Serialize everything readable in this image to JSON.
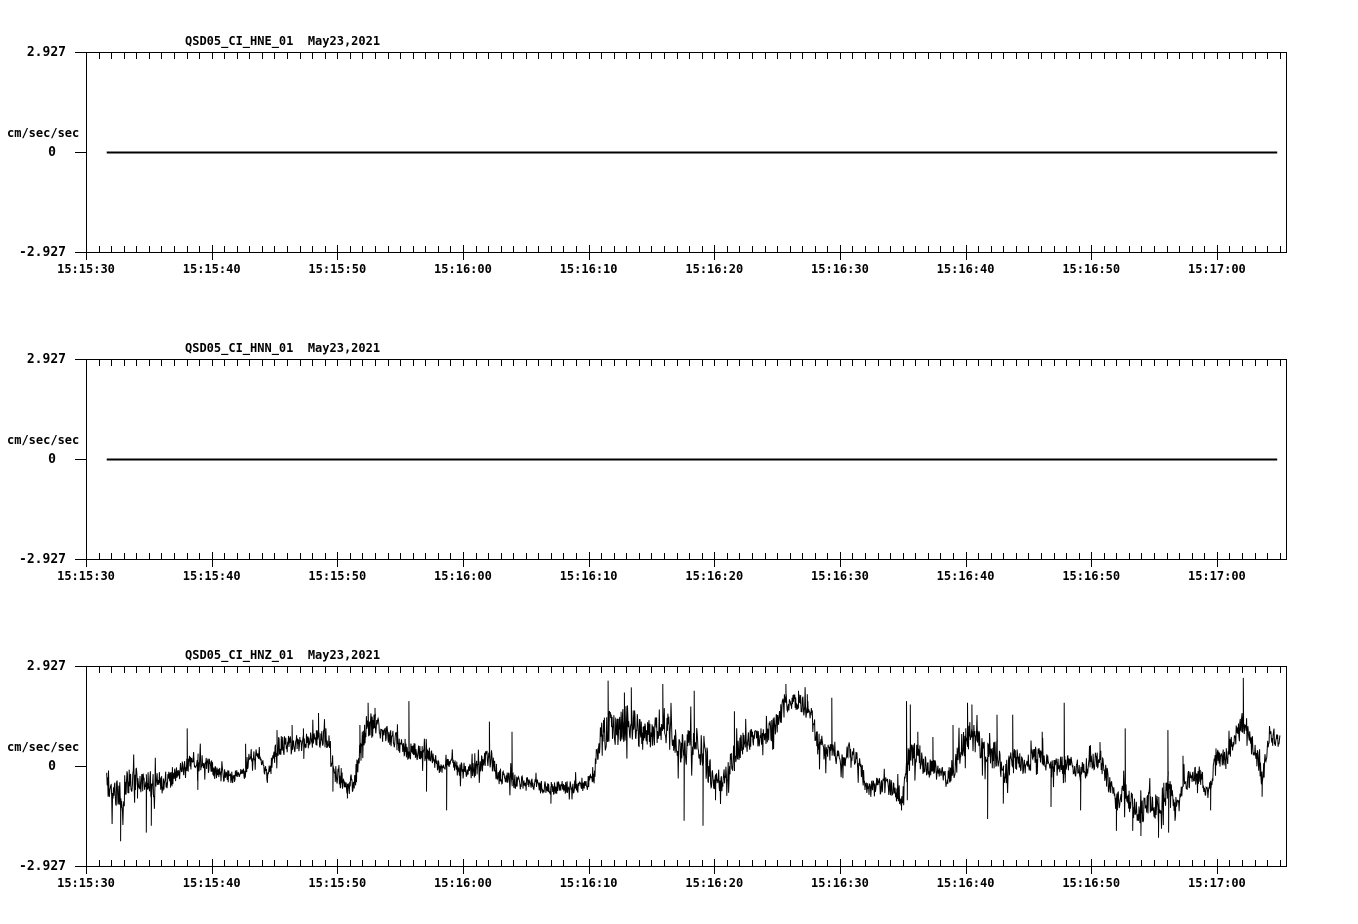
{
  "page": {
    "background": "#ffffff",
    "ink": "#000000"
  },
  "panels": [
    {
      "title": "QSD05_CI_HNE_01  May23,2021",
      "ylabel": "cm/sec/sec",
      "y_ticks": [
        "2.927",
        "0",
        "-2.927"
      ]
    },
    {
      "title": "QSD05_CI_HNN_01  May23,2021",
      "ylabel": "cm/sec/sec",
      "y_ticks": [
        "2.927",
        "0",
        "-2.927"
      ]
    },
    {
      "title": "QSD05_CI_HNZ_01  May23,2021",
      "ylabel": "cm/sec/sec",
      "y_ticks": [
        "2.927",
        "0",
        "-2.927"
      ]
    }
  ],
  "x_axis": {
    "labels": [
      "15:15:30",
      "15:15:40",
      "15:15:50",
      "15:16:00",
      "15:16:10",
      "15:16:20",
      "15:16:30",
      "15:16:40",
      "15:16:50",
      "15:17:00"
    ],
    "major_interval_s": 10,
    "minor_interval_s": 1,
    "span_s": 95.5
  },
  "chart_data": {
    "type": "line",
    "ylabel": "cm/sec/sec",
    "ylim": [
      -2.927,
      2.927
    ],
    "x_start_label": "15:15:30",
    "x_tick_labels": [
      "15:15:30",
      "15:15:40",
      "15:15:50",
      "15:16:00",
      "15:16:10",
      "15:16:20",
      "15:16:30",
      "15:16:40",
      "15:16:50",
      "15:17:00"
    ],
    "x_span_s": 95.5,
    "grid": false,
    "legend": false,
    "series": [
      {
        "name": "QSD05_CI_HNE_01",
        "x_s": [
          1.65,
          94.8
        ],
        "values": [
          0,
          0
        ]
      },
      {
        "name": "QSD05_CI_HNN_01",
        "x_s": [
          1.65,
          94.8
        ],
        "values": [
          0,
          0
        ]
      },
      {
        "name": "QSD05_CI_HNZ_01",
        "x_s": [
          1.65,
          2.2,
          2.8,
          3.4,
          4.2,
          4.8,
          5.4,
          6.1,
          6.7,
          7.3,
          8.0,
          8.5,
          9.0,
          9.6,
          10.3,
          11.2,
          12.0,
          12.6,
          13.0,
          13.7,
          14.4,
          15.3,
          16.2,
          17.0,
          18.3,
          19.2,
          19.7,
          20.5,
          21.3,
          21.8,
          22.4,
          23.0,
          23.6,
          24.4,
          25.0,
          25.7,
          26.5,
          27.3,
          28.0,
          28.7,
          29.5,
          30.3,
          31.0,
          32.1,
          32.8,
          33.9,
          34.8,
          36.0,
          37.2,
          38.4,
          39.6,
          40.4,
          40.9,
          41.5,
          42.2,
          42.9,
          43.5,
          44.3,
          45.2,
          45.9,
          46.7,
          47.5,
          48.3,
          49.1,
          49.9,
          50.7,
          51.5,
          52.3,
          53.2,
          54.2,
          55.0,
          55.7,
          56.4,
          57.0,
          57.6,
          58.2,
          58.9,
          59.4,
          59.9,
          60.3,
          60.7,
          61.3,
          61.8,
          62.3,
          62.9,
          63.4,
          64.1,
          64.5,
          65.0,
          65.3,
          65.8,
          66.3,
          66.8,
          67.4,
          68.0,
          68.4,
          69.0,
          69.6,
          70.2,
          70.8,
          71.3,
          71.9,
          72.5,
          73.0,
          73.8,
          74.5,
          75.3,
          75.9,
          76.7,
          77.5,
          78.4,
          79.2,
          80.0,
          80.7,
          81.3,
          81.9,
          82.6,
          83.3,
          83.9,
          84.6,
          85.3,
          86.1,
          86.7,
          87.4,
          88.0,
          88.6,
          89.3,
          89.9,
          90.7,
          91.3,
          91.8,
          92.1,
          92.6,
          93.1,
          93.6,
          94.2,
          94.8,
          95.0
        ],
        "values": [
          -0.5,
          -0.75,
          -0.95,
          -0.4,
          -0.35,
          -0.55,
          -0.5,
          -0.5,
          -0.35,
          -0.15,
          -0.1,
          0.25,
          0.1,
          0.1,
          -0.2,
          -0.3,
          -0.3,
          -0.25,
          0.3,
          0.4,
          -0.3,
          0.6,
          0.6,
          0.7,
          0.85,
          0.8,
          0.0,
          -0.5,
          -0.55,
          0.3,
          1.3,
          1.2,
          0.9,
          0.85,
          0.6,
          0.45,
          0.35,
          0.3,
          0.0,
          0.1,
          -0.1,
          -0.15,
          -0.1,
          0.3,
          -0.3,
          -0.4,
          -0.5,
          -0.6,
          -0.65,
          -0.6,
          -0.55,
          -0.3,
          0.7,
          1.1,
          0.95,
          1.25,
          1.2,
          0.9,
          1.1,
          1.25,
          0.8,
          0.4,
          0.8,
          0.4,
          -0.4,
          -0.4,
          0.2,
          0.7,
          0.85,
          0.9,
          1.25,
          1.85,
          1.9,
          1.8,
          1.55,
          0.7,
          0.35,
          0.5,
          0.25,
          0.1,
          0.55,
          0.2,
          -0.3,
          -0.7,
          -0.6,
          -0.55,
          -0.65,
          -0.75,
          -1.0,
          0.0,
          0.3,
          0.3,
          -0.05,
          -0.1,
          -0.2,
          -0.45,
          -0.1,
          0.5,
          0.9,
          0.8,
          0.5,
          0.2,
          0.4,
          -0.3,
          0.2,
          0.0,
          0.2,
          0.4,
          -0.1,
          0.0,
          0.1,
          -0.2,
          0.1,
          0.2,
          -0.4,
          -1.0,
          -0.8,
          -1.2,
          -1.4,
          -1.0,
          -1.3,
          -0.6,
          -1.3,
          -0.5,
          -0.3,
          -0.25,
          -0.9,
          0.3,
          0.2,
          0.7,
          1.1,
          1.3,
          0.7,
          0.4,
          -0.4,
          0.9,
          0.8,
          0.75
        ],
        "noise_amp": [
          0.45,
          0.55,
          0.5,
          0.4,
          0.35,
          0.45,
          0.4,
          0.35,
          0.3,
          0.28,
          0.3,
          0.3,
          0.3,
          0.25,
          0.22,
          0.2,
          0.2,
          0.22,
          0.25,
          0.25,
          0.25,
          0.3,
          0.28,
          0.28,
          0.28,
          0.3,
          0.4,
          0.3,
          0.3,
          0.4,
          0.45,
          0.4,
          0.3,
          0.28,
          0.28,
          0.3,
          0.25,
          0.25,
          0.25,
          0.28,
          0.25,
          0.25,
          0.25,
          0.3,
          0.25,
          0.25,
          0.22,
          0.2,
          0.2,
          0.2,
          0.22,
          0.3,
          0.5,
          0.55,
          0.5,
          0.55,
          0.5,
          0.5,
          0.5,
          0.55,
          0.5,
          0.5,
          0.55,
          0.6,
          0.45,
          0.35,
          0.4,
          0.35,
          0.3,
          0.3,
          0.35,
          0.35,
          0.3,
          0.3,
          0.35,
          0.4,
          0.3,
          0.35,
          0.28,
          0.25,
          0.25,
          0.28,
          0.28,
          0.28,
          0.28,
          0.25,
          0.28,
          0.3,
          0.3,
          0.5,
          0.4,
          0.35,
          0.3,
          0.3,
          0.28,
          0.28,
          0.35,
          0.4,
          0.45,
          0.4,
          0.4,
          0.4,
          0.4,
          0.35,
          0.4,
          0.3,
          0.3,
          0.3,
          0.3,
          0.28,
          0.28,
          0.3,
          0.28,
          0.28,
          0.3,
          0.35,
          0.35,
          0.35,
          0.35,
          0.35,
          0.4,
          0.45,
          0.35,
          0.3,
          0.28,
          0.28,
          0.3,
          0.3,
          0.3,
          0.35,
          0.35,
          0.4,
          0.35,
          0.3,
          0.3,
          0.3,
          0.28,
          0.25
        ],
        "spikes": [
          [
            2.75,
            -2.2
          ],
          [
            4.1,
            -0.95
          ],
          [
            4.8,
            -1.95
          ],
          [
            5.2,
            -1.75
          ],
          [
            8.05,
            1.1
          ],
          [
            8.9,
            -0.7
          ],
          [
            12.7,
            0.65
          ],
          [
            15.2,
            1.05
          ],
          [
            16.4,
            1.2
          ],
          [
            17.3,
            1.1
          ],
          [
            18.5,
            1.55
          ],
          [
            19.65,
            -0.75
          ],
          [
            20.8,
            -0.95
          ],
          [
            21.8,
            1.2
          ],
          [
            22.45,
            1.85
          ],
          [
            23.0,
            1.7
          ],
          [
            25.7,
            1.9
          ],
          [
            27.1,
            -0.75
          ],
          [
            28.7,
            -1.3
          ],
          [
            32.1,
            1.3
          ],
          [
            33.9,
            1.0
          ],
          [
            37.0,
            -1.1
          ],
          [
            41.55,
            2.5
          ],
          [
            42.85,
            2.15
          ],
          [
            43.4,
            2.3
          ],
          [
            45.9,
            2.4
          ],
          [
            47.6,
            -1.6
          ],
          [
            48.4,
            2.2
          ],
          [
            49.1,
            -1.75
          ],
          [
            50.1,
            -1.0
          ],
          [
            51.6,
            1.6
          ],
          [
            55.7,
            2.4
          ],
          [
            56.7,
            2.2
          ],
          [
            57.4,
            2.1
          ],
          [
            59.35,
            2.0
          ],
          [
            64.9,
            -1.3
          ],
          [
            65.3,
            1.9
          ],
          [
            65.36,
            -1.0
          ],
          [
            65.6,
            1.8
          ],
          [
            66.2,
            1.0
          ],
          [
            67.4,
            0.85
          ],
          [
            69.0,
            1.2
          ],
          [
            70.15,
            1.85
          ],
          [
            70.5,
            1.8
          ],
          [
            71.75,
            -1.55
          ],
          [
            72.5,
            1.5
          ],
          [
            73.0,
            -1.1
          ],
          [
            73.75,
            1.5
          ],
          [
            76.1,
            1.0
          ],
          [
            76.8,
            -1.2
          ],
          [
            77.85,
            1.85
          ],
          [
            79.15,
            -1.3
          ],
          [
            80.7,
            0.7
          ],
          [
            82.0,
            -1.9
          ],
          [
            82.7,
            1.1
          ],
          [
            83.3,
            -1.9
          ],
          [
            83.95,
            -2.05
          ],
          [
            85.35,
            -2.1
          ],
          [
            86.1,
            1.05
          ],
          [
            86.16,
            -1.95
          ],
          [
            87.3,
            0.3
          ],
          [
            89.5,
            -1.3
          ],
          [
            92.1,
            2.58
          ],
          [
            93.6,
            -0.9
          ]
        ]
      }
    ]
  }
}
